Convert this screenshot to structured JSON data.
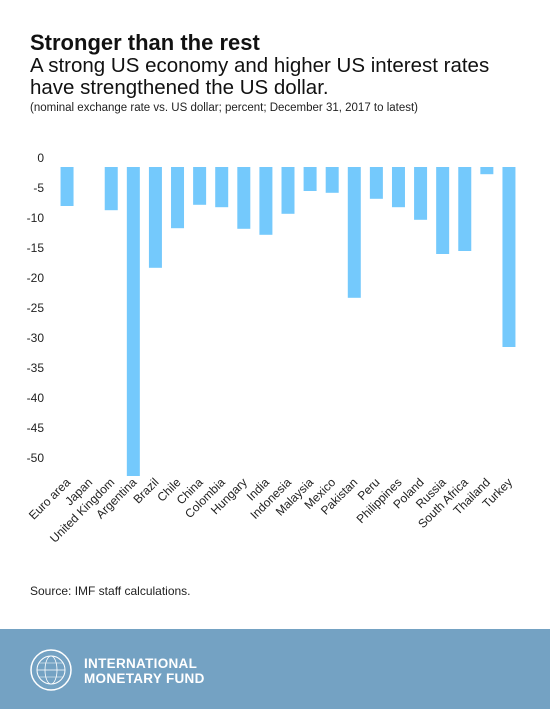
{
  "header": {
    "title": "Stronger than the rest",
    "subtitle": "A strong US economy and higher US interest rates have strengthened the US dollar.",
    "note": "(nominal exchange rate vs. US dollar; percent; December 31, 2017 to latest)"
  },
  "chart_data": {
    "type": "bar",
    "categories": [
      "Euro area",
      "Japan",
      "United Kingdom",
      "Argentina",
      "Brazil",
      "Chile",
      "China",
      "Colombia",
      "Hungary",
      "India",
      "Indonesia",
      "Malaysia",
      "Mexico",
      "Pakistan",
      "Peru",
      "Philippines",
      "Poland",
      "Russia",
      "South Africa",
      "Thailand",
      "Turkey"
    ],
    "values": [
      -6.5,
      0,
      -7.2,
      -51.5,
      -16.8,
      -10.2,
      -6.3,
      -6.7,
      -10.3,
      -11.3,
      -7.8,
      -4.0,
      -4.3,
      -21.8,
      -5.3,
      -6.7,
      -8.8,
      -14.5,
      -14.0,
      -1.2,
      -30.0
    ],
    "yticks": [
      0,
      -5,
      -10,
      -15,
      -20,
      -25,
      -30,
      -35,
      -40,
      -45,
      -50
    ],
    "ylim": [
      -52,
      0
    ],
    "bar_color": "#74c9fc",
    "title": "",
    "xlabel": "",
    "ylabel": ""
  },
  "footer": {
    "source": "Source: IMF staff calculations.",
    "org_line1": "INTERNATIONAL",
    "org_line2": "MONETARY FUND",
    "background": "#74a2c3",
    "logo_icon": "imf-seal-icon"
  }
}
